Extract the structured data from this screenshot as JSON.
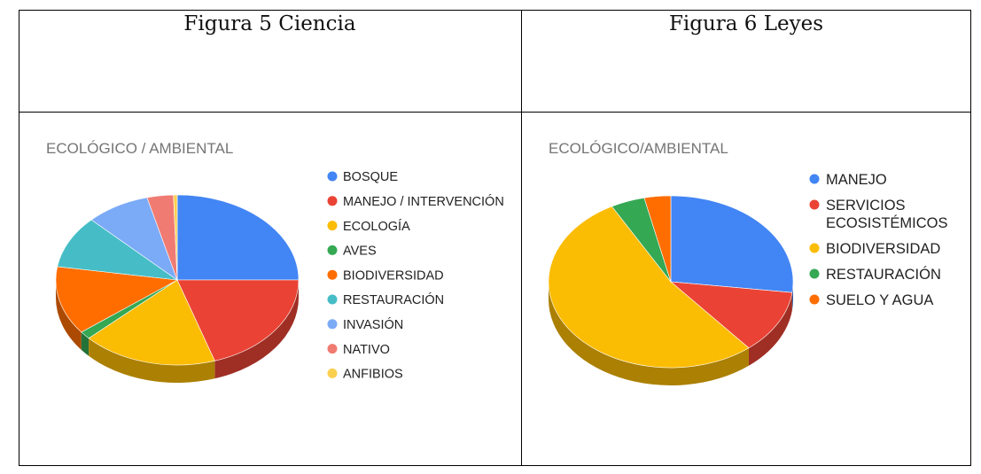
{
  "figures": {
    "left_label": "Figura 5 Ciencia",
    "right_label": "Figura 6 Leyes"
  },
  "chart_data": [
    {
      "type": "pie",
      "title": "ECOLÓGICO / AMBIENTAL",
      "legend_position": "right",
      "labels": [
        "BOSQUE",
        "MANEJO / INTERVENCIÓN",
        "ECOLOGÍA",
        "AVES",
        "BIODIVERSIDAD",
        "RESTAURACIÓN",
        "INVASIÓN",
        "NATIVO",
        "ANFIBIOS"
      ],
      "values": [
        25,
        20,
        18,
        1.5,
        13,
        10,
        8.5,
        3.5,
        0.5
      ],
      "colors": [
        "#4285F4",
        "#EA4335",
        "#FBBC04",
        "#34A853",
        "#FF6D01",
        "#46BDC6",
        "#7BAAF7",
        "#F07B72",
        "#FCD04F"
      ]
    },
    {
      "type": "pie",
      "title": "ECOLÓGICO/AMBIENTAL",
      "legend_position": "right",
      "labels": [
        "MANEJO",
        "SERVICIOS ECOSISTÉMICOS",
        "BIODIVERSIDAD",
        "RESTAURACIÓN",
        "SUELO Y AGUA"
      ],
      "values": [
        27,
        12,
        53,
        4.5,
        3.5
      ],
      "colors": [
        "#4285F4",
        "#EA4335",
        "#FBBC04",
        "#34A853",
        "#FF6D01"
      ]
    }
  ]
}
